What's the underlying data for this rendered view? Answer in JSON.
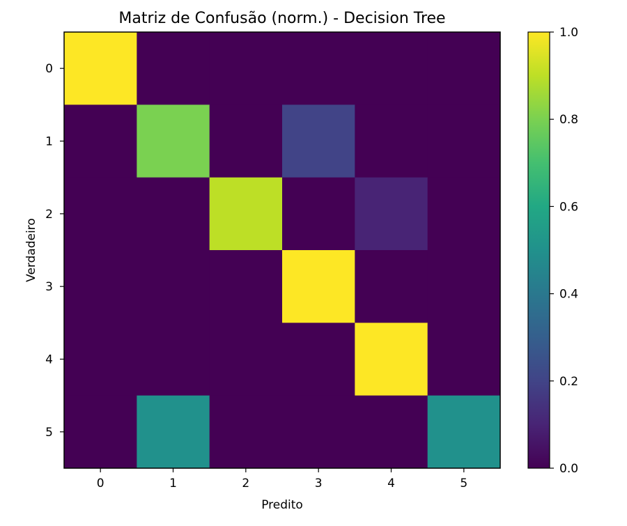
{
  "chart_data": {
    "type": "heatmap",
    "title": "Matriz de Confusão (norm.) - Decision Tree",
    "xlabel": "Predito",
    "ylabel": "Verdadeiro",
    "x_categories": [
      "0",
      "1",
      "2",
      "3",
      "4",
      "5"
    ],
    "y_categories": [
      "0",
      "1",
      "2",
      "3",
      "4",
      "5"
    ],
    "matrix": [
      [
        1.0,
        0.0,
        0.0,
        0.0,
        0.0,
        0.0
      ],
      [
        0.0,
        0.8,
        0.0,
        0.2,
        0.0,
        0.0
      ],
      [
        0.0,
        0.0,
        0.9,
        0.0,
        0.1,
        0.0
      ],
      [
        0.0,
        0.0,
        0.0,
        1.0,
        0.0,
        0.0
      ],
      [
        0.0,
        0.0,
        0.0,
        0.0,
        1.0,
        0.0
      ],
      [
        0.0,
        0.5,
        0.0,
        0.0,
        0.0,
        0.5
      ]
    ],
    "colormap": "viridis",
    "colorbar": {
      "range": [
        0.0,
        1.0
      ],
      "ticks": [
        0.0,
        0.2,
        0.4,
        0.6,
        0.8,
        1.0
      ],
      "tick_labels": [
        "0.0",
        "0.2",
        "0.4",
        "0.6",
        "0.8",
        "1.0"
      ]
    },
    "grid": false
  }
}
